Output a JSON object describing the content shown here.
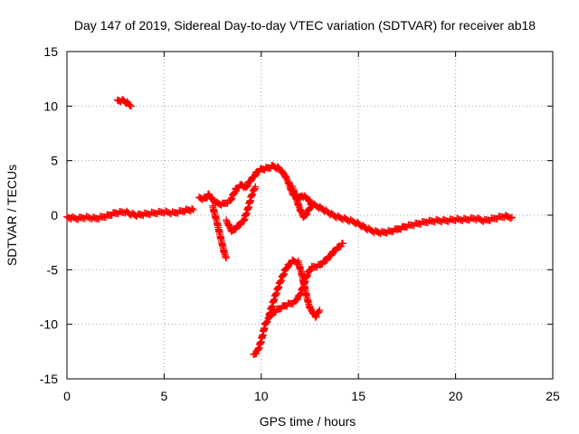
{
  "chart_data": {
    "type": "scatter",
    "title": "Day 147 of 2019, Sidereal Day-to-day VTEC variation (SDTVAR) for receiver ab18",
    "xlabel": "GPS time / hours",
    "ylabel": "SDTVAR / TECUs",
    "xlim": [
      0,
      25
    ],
    "ylim": [
      -15,
      15
    ],
    "xticks": [
      "0",
      "5",
      "10",
      "15",
      "20",
      "25"
    ],
    "yticks": [
      "-15",
      "-10",
      "-5",
      "0",
      "5",
      "10",
      "15"
    ],
    "grid": true,
    "marker": "+",
    "series": [
      {
        "name": "SDTVAR",
        "color": "#ff0000",
        "segments": [
          [
            [
              0.0,
              -0.2
            ],
            [
              0.5,
              -0.3
            ],
            [
              1.0,
              -0.2
            ],
            [
              1.5,
              -0.3
            ],
            [
              2.0,
              -0.1
            ],
            [
              2.5,
              0.2
            ],
            [
              3.0,
              0.3
            ],
            [
              3.3,
              0.1
            ],
            [
              3.6,
              0.0
            ],
            [
              4.0,
              0.1
            ],
            [
              4.5,
              0.2
            ],
            [
              5.0,
              0.3
            ],
            [
              5.5,
              0.2
            ],
            [
              6.0,
              0.4
            ],
            [
              6.3,
              0.5
            ],
            [
              6.5,
              0.5
            ]
          ],
          [
            [
              2.6,
              10.5
            ],
            [
              2.9,
              10.5
            ],
            [
              3.1,
              10.3
            ],
            [
              3.3,
              10.0
            ]
          ],
          [
            [
              6.8,
              1.6
            ],
            [
              7.1,
              1.5
            ],
            [
              7.3,
              1.9
            ],
            [
              7.5,
              1.4
            ],
            [
              7.7,
              1.1
            ],
            [
              8.0,
              1.0
            ],
            [
              8.4,
              1.3
            ],
            [
              8.7,
              2.4
            ],
            [
              9.0,
              2.8
            ],
            [
              9.2,
              2.5
            ],
            [
              9.4,
              3.1
            ],
            [
              9.6,
              3.5
            ],
            [
              9.8,
              4.0
            ],
            [
              10.0,
              4.2
            ],
            [
              10.3,
              4.3
            ],
            [
              10.6,
              4.5
            ],
            [
              10.9,
              4.3
            ],
            [
              11.2,
              3.7
            ],
            [
              11.4,
              3.0
            ],
            [
              11.6,
              2.0
            ],
            [
              11.9,
              1.5
            ],
            [
              12.1,
              1.8
            ],
            [
              12.4,
              1.5
            ],
            [
              12.6,
              1.0
            ],
            [
              12.9,
              0.8
            ],
            [
              13.2,
              0.5
            ],
            [
              13.5,
              0.2
            ],
            [
              13.8,
              -0.1
            ],
            [
              14.2,
              -0.3
            ],
            [
              14.6,
              -0.5
            ],
            [
              15.0,
              -0.8
            ],
            [
              15.4,
              -1.2
            ],
            [
              15.8,
              -1.5
            ],
            [
              16.2,
              -1.6
            ],
            [
              16.6,
              -1.5
            ],
            [
              17.0,
              -1.3
            ]
          ],
          [
            [
              7.5,
              0.8
            ],
            [
              7.7,
              -0.5
            ],
            [
              7.9,
              -2.0
            ],
            [
              8.1,
              -3.5
            ],
            [
              8.2,
              -3.9
            ]
          ],
          [
            [
              8.2,
              -0.5
            ],
            [
              8.5,
              -1.5
            ],
            [
              8.8,
              -1.0
            ],
            [
              9.1,
              -0.5
            ],
            [
              9.3,
              0.5
            ],
            [
              9.5,
              1.8
            ],
            [
              9.7,
              2.6
            ]
          ],
          [
            [
              11.6,
              2.6
            ],
            [
              11.8,
              1.5
            ],
            [
              12.0,
              0.5
            ],
            [
              12.2,
              -0.2
            ],
            [
              12.4,
              0.3
            ],
            [
              12.6,
              1.1
            ]
          ],
          [
            [
              9.6,
              -12.8
            ],
            [
              9.8,
              -12.5
            ],
            [
              10.0,
              -11.5
            ],
            [
              10.2,
              -10.0
            ],
            [
              10.5,
              -9.1
            ],
            [
              10.8,
              -8.7
            ],
            [
              11.2,
              -8.3
            ],
            [
              11.5,
              -8.1
            ],
            [
              11.7,
              -8.0
            ],
            [
              12.0,
              -7.3
            ],
            [
              12.2,
              -6.3
            ],
            [
              12.4,
              -5.3
            ],
            [
              12.6,
              -4.8
            ],
            [
              13.0,
              -4.6
            ],
            [
              13.4,
              -4.0
            ],
            [
              13.8,
              -3.2
            ],
            [
              14.2,
              -2.6
            ]
          ],
          [
            [
              10.4,
              -9.2
            ],
            [
              10.7,
              -7.5
            ],
            [
              11.0,
              -6.0
            ],
            [
              11.3,
              -4.8
            ],
            [
              11.6,
              -4.2
            ],
            [
              11.9,
              -4.3
            ],
            [
              12.1,
              -5.5
            ],
            [
              12.3,
              -7.2
            ],
            [
              12.5,
              -8.5
            ],
            [
              12.8,
              -9.3
            ],
            [
              13.0,
              -8.7
            ]
          ],
          [
            [
              17.0,
              -1.3
            ],
            [
              17.5,
              -1.0
            ],
            [
              18.0,
              -0.8
            ],
            [
              18.5,
              -0.6
            ],
            [
              19.0,
              -0.5
            ],
            [
              19.5,
              -0.5
            ],
            [
              20.0,
              -0.4
            ],
            [
              20.5,
              -0.4
            ],
            [
              21.0,
              -0.3
            ],
            [
              21.5,
              -0.5
            ],
            [
              22.0,
              -0.3
            ],
            [
              22.5,
              -0.1
            ],
            [
              22.9,
              -0.2
            ]
          ]
        ]
      }
    ]
  }
}
